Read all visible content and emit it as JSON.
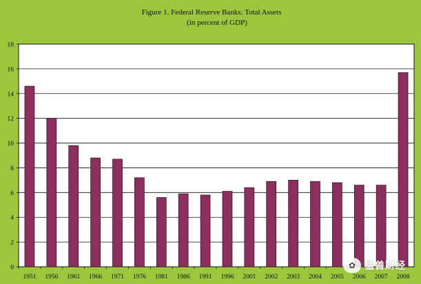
{
  "chart_data": {
    "type": "bar",
    "title": "Figure 1. Federal Reserve Banks: Total Assets",
    "subtitle": "(in percent of GDP)",
    "categories": [
      "1951",
      "1956",
      "1961",
      "1966",
      "1971",
      "1976",
      "1981",
      "1986",
      "1991",
      "1996",
      "2001",
      "2002",
      "2003",
      "2004",
      "2005",
      "2006",
      "2007",
      "2008"
    ],
    "values": [
      14.6,
      12.0,
      9.8,
      8.8,
      8.7,
      7.2,
      5.6,
      5.9,
      5.8,
      6.1,
      6.4,
      6.9,
      7.0,
      6.9,
      6.8,
      6.6,
      6.6,
      15.7
    ],
    "yticks": [
      0,
      2,
      4,
      6,
      8,
      10,
      12,
      14,
      16,
      18
    ],
    "ylim": [
      0,
      18
    ],
    "xlabel": "",
    "ylabel": "",
    "grid": true,
    "legend": "none"
  },
  "colors": {
    "background": "#9dc63f",
    "plot_area": "#ffffff",
    "bar": "#8b2f5e",
    "bar_stroke": "#2a0f1c",
    "grid": "#111111"
  },
  "watermark": {
    "icon": "wechat-icon",
    "text": "猛兽财经"
  }
}
